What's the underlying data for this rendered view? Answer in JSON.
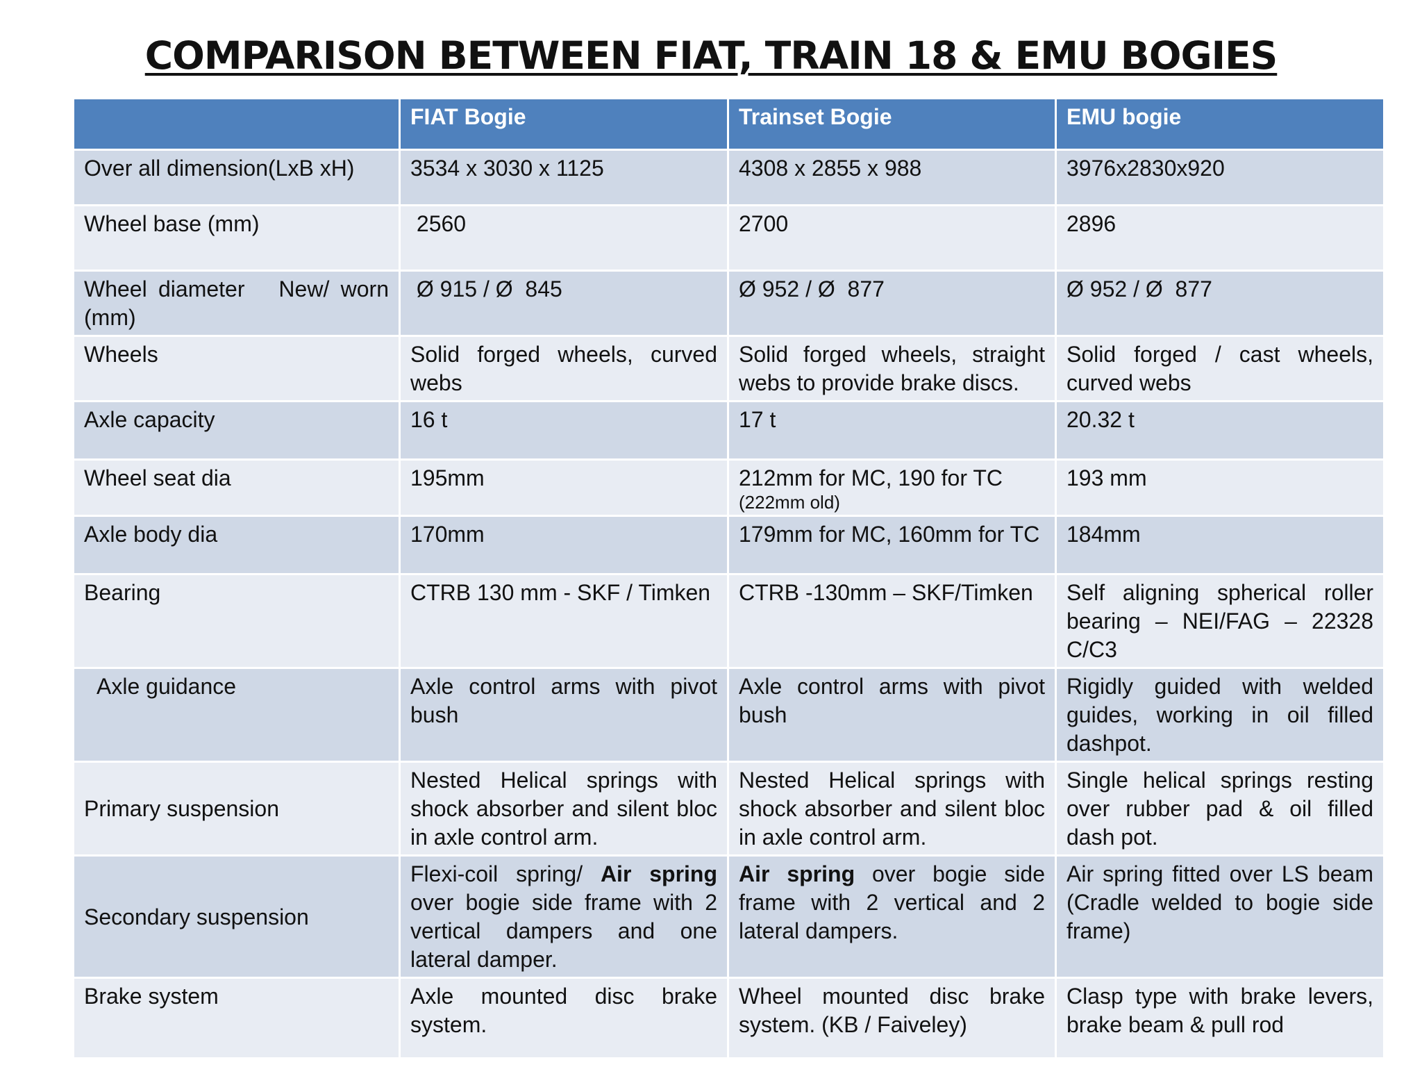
{
  "title": "COMPARISON BETWEEN FIAT, TRAIN 18 & EMU BOGIES",
  "table": {
    "headers": [
      "",
      "FIAT Bogie",
      "Trainset Bogie",
      "EMU bogie"
    ],
    "rows": [
      {
        "label": "Over all dimension(LxB xH)",
        "fiat": "3534 x 3030 x 1125",
        "trainset": "4308 x 2855 x 988",
        "emu": "3976x2830x920"
      },
      {
        "label": "Wheel base (mm)",
        "fiat": " 2560",
        "trainset": "2700",
        "emu": "2896"
      },
      {
        "label": "Wheel diameter   New/ worn (mm)",
        "fiat": " Ø 915 / Ø  845",
        "trainset": "Ø 952 / Ø  877",
        "emu": "Ø 952 / Ø  877"
      },
      {
        "label": "Wheels",
        "fiat": "Solid forged wheels, curved webs",
        "trainset": "Solid forged wheels, straight webs to provide brake discs.",
        "emu": "Solid forged / cast wheels, curved webs"
      },
      {
        "label": "Axle capacity",
        "fiat": "16 t",
        "trainset": "17 t",
        "emu": "20.32 t"
      },
      {
        "label": "Wheel seat dia",
        "fiat": "195mm",
        "trainset": "212mm for MC, 190 for TC",
        "trainset_note": "(222mm old)",
        "emu": "193 mm"
      },
      {
        "label": "Axle body dia",
        "fiat": "170mm",
        "trainset": "179mm for MC, 160mm for TC",
        "emu": "184mm"
      },
      {
        "label": "Bearing",
        "fiat": "CTRB 130 mm - SKF / Timken",
        "trainset": "CTRB -130mm – SKF/Timken",
        "emu": "Self aligning spherical roller bearing – NEI/FAG – 22328 C/C3"
      },
      {
        "label": "Axle guidance",
        "fiat": "Axle control arms with pivot bush",
        "trainset": "Axle control arms with pivot bush",
        "emu": "Rigidly guided with welded guides, working in oil filled dashpot."
      },
      {
        "label": "Primary suspension",
        "fiat": "Nested Helical springs with shock absorber and silent bloc in axle control arm.",
        "trainset": "Nested Helical springs with shock absorber and silent bloc in axle control arm.",
        "emu": "Single helical springs resting over rubber pad & oil filled dash pot."
      },
      {
        "label": "Secondary suspension",
        "fiat_a": "Flexi-coil spring/ ",
        "fiat_b": "Air spring",
        "fiat_c": " over bogie side frame with 2 vertical dampers and one lateral damper.",
        "trainset_a": "Air spring",
        "trainset_b": "  over bogie side frame with 2 vertical and 2 lateral dampers.",
        "emu": "Air spring fitted over LS beam (Cradle welded to bogie side frame)"
      },
      {
        "label": "Brake system",
        "fiat": "Axle mounted disc brake system.",
        "trainset": "Wheel mounted disc brake system. (KB / Faiveley)",
        "emu": "Clasp type with brake levers, brake beam & pull rod"
      }
    ]
  }
}
